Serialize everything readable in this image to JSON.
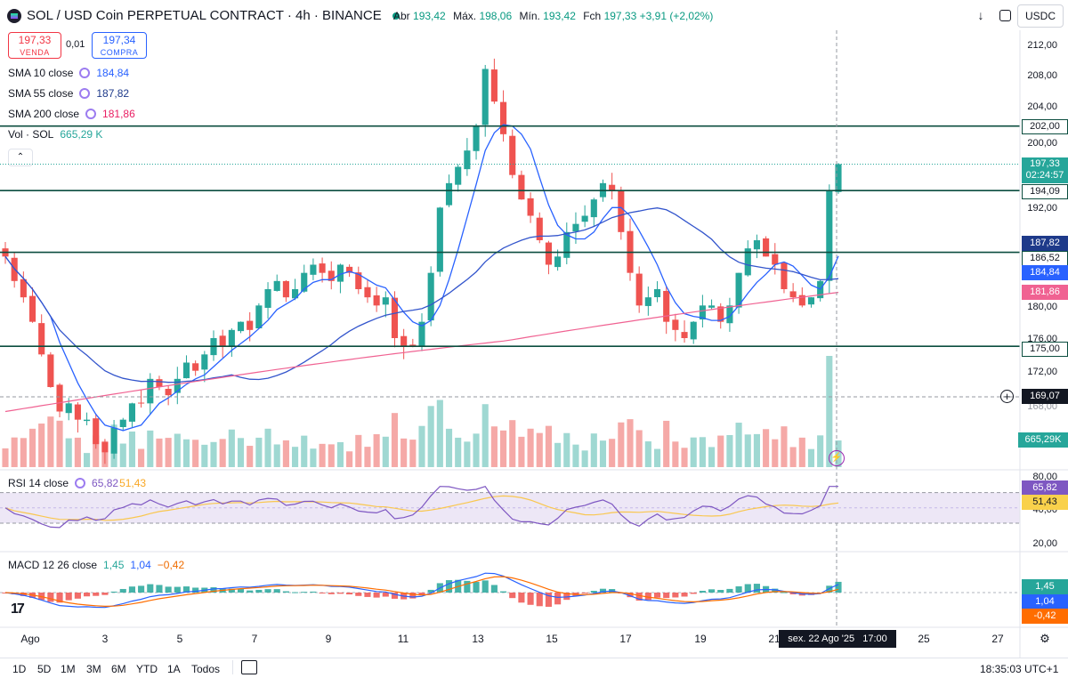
{
  "header": {
    "symbol": "SOL / USD Coin PERPETUAL CONTRACT · 4h · BINANCE",
    "open_label": "Abr",
    "open": "193,42",
    "high_label": "Máx.",
    "high": "198,06",
    "low_label": "Mín.",
    "low": "193,42",
    "close_label": "Fch",
    "close": "197,33",
    "change": "+3,91 (+2,02%)",
    "currency": "USDC"
  },
  "trade": {
    "sell_price": "197,33",
    "sell_label": "VENDA",
    "spread": "0,01",
    "buy_price": "197,34",
    "buy_label": "COMPRA"
  },
  "indicators": {
    "sma10": {
      "label": "SMA 10 close",
      "value": "184,84"
    },
    "sma55": {
      "label": "SMA 55 close",
      "value": "187,82"
    },
    "sma200": {
      "label": "SMA 200 close",
      "value": "181,86"
    },
    "vol": {
      "label": "Vol · SOL",
      "value": "665,29 K"
    },
    "rsi": {
      "label": "RSI 14 close",
      "value": "65,82",
      "ma": "51,43"
    },
    "macd": {
      "label": "MACD 12 26 close",
      "hist": "1,45",
      "macd": "1,04",
      "signal": "−0,42"
    }
  },
  "price_axis": {
    "ticks": [
      "212,00",
      "208,00",
      "204,00",
      "200,00",
      "192,00",
      "180,00",
      "176,00",
      "172,00",
      "168,00"
    ],
    "boxes": {
      "h202": "202,00",
      "last": "197,33",
      "countdown": "02:24:57",
      "h194": "194,09",
      "sma55": "187,82",
      "h186": "186,52",
      "sma10": "184,84",
      "sma200": "181,86",
      "h175": "175,00",
      "cross": "169,07",
      "vol": "665,29K"
    },
    "rsi_ticks": [
      "80,00",
      "40,00",
      "20,00"
    ],
    "rsi_boxes": {
      "rsi": "65,82",
      "ma": "51,43"
    },
    "macd_boxes": {
      "hist": "1,45",
      "macd": "1,04",
      "signal": "-0,42"
    }
  },
  "time_axis": {
    "labels": [
      "Ago",
      "3",
      "5",
      "7",
      "9",
      "11",
      "13",
      "15",
      "17",
      "19",
      "21",
      "25",
      "27"
    ],
    "cursor": "sex. 22 Ago '25   17:00"
  },
  "bottom_bar": {
    "ranges": [
      "1D",
      "5D",
      "1M",
      "3M",
      "6M",
      "YTD",
      "1A",
      "Todos"
    ],
    "clock": "18:35:03 UTC+1"
  },
  "colors": {
    "up": "#26a69a",
    "down": "#ef5350",
    "sma10": "#2962ff",
    "sma55": "#1e3a8a",
    "sma200": "#f06292",
    "hline": "#0b4d3f"
  },
  "chart_data": {
    "type": "candlestick",
    "title": "SOL / USD Coin PERPETUAL CONTRACT · 4h · BINANCE",
    "interval": "4h",
    "ylim": [
      164,
      214
    ],
    "x": [
      "Ago",
      "3",
      "5",
      "7",
      "9",
      "11",
      "13",
      "15",
      "17",
      "19",
      "21",
      "25",
      "27"
    ],
    "horizontal_lines": [
      202.0,
      194.09,
      186.52,
      175.0
    ],
    "series": [
      {
        "name": "SMA 10 close",
        "last": 184.84
      },
      {
        "name": "SMA 55 close",
        "last": 187.82
      },
      {
        "name": "SMA 200 close",
        "last": 181.86
      }
    ],
    "close_path": [
      186,
      183,
      181,
      178,
      174,
      170,
      167,
      168,
      166,
      166,
      163,
      162,
      165,
      166,
      168,
      168,
      171,
      170,
      169,
      171,
      173,
      172,
      174,
      176,
      175,
      177,
      178,
      177,
      180,
      182,
      183,
      181,
      182,
      184,
      185,
      184,
      183,
      185,
      184,
      182,
      181,
      180,
      181,
      176,
      175,
      175,
      178,
      184,
      192,
      195,
      197,
      199,
      202,
      209,
      205,
      201,
      196,
      193,
      191,
      188,
      185,
      186,
      189,
      190,
      191,
      193,
      195,
      194,
      189,
      184,
      180,
      181,
      182,
      178,
      177,
      176,
      178,
      180,
      180,
      178,
      180,
      184,
      187,
      188,
      186,
      185,
      182,
      181,
      180,
      181,
      183,
      194,
      197.33
    ]
  }
}
